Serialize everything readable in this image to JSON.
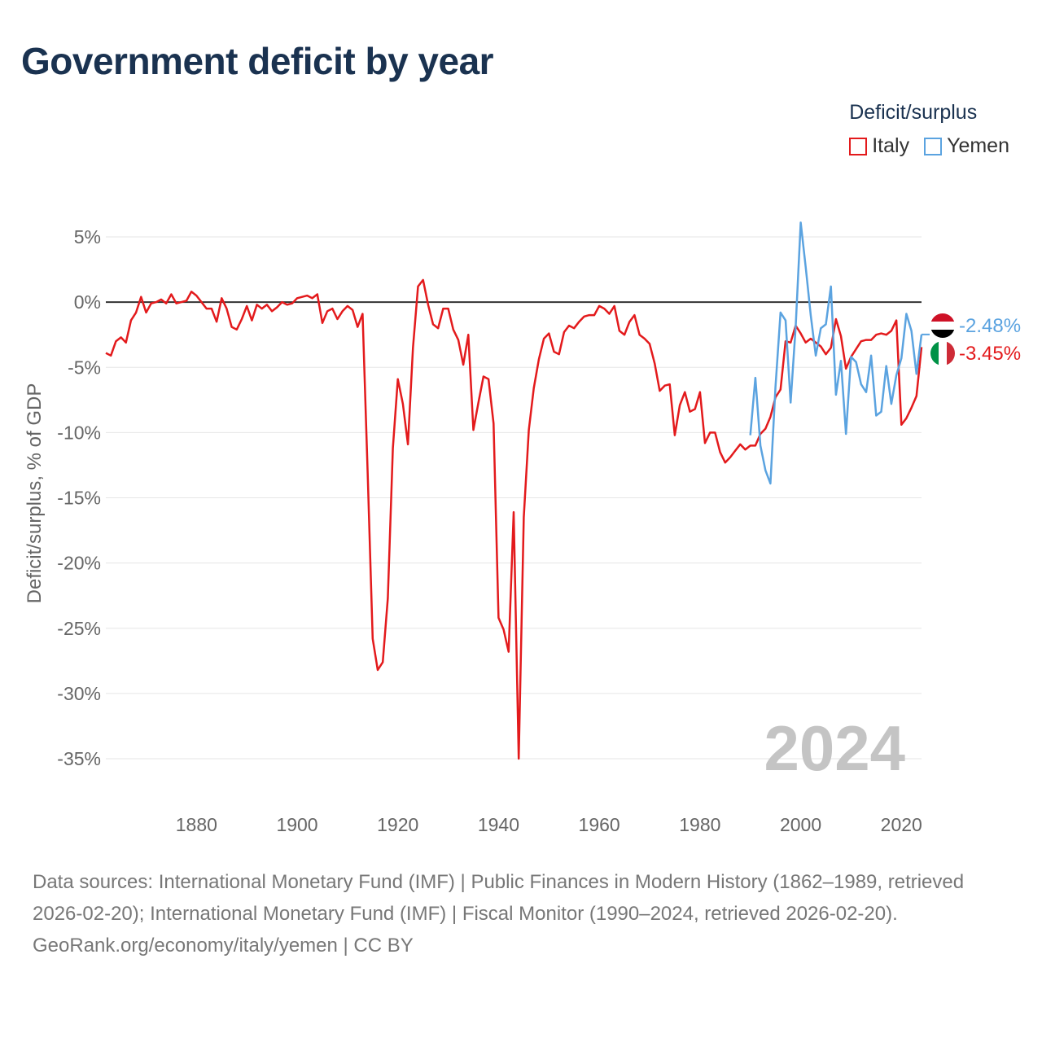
{
  "title": "Government deficit by year",
  "legend": {
    "title": "Deficit/surplus",
    "items": [
      {
        "label": "Italy",
        "color": "#e31a1c"
      },
      {
        "label": "Yemen",
        "color": "#5ba3e0"
      }
    ]
  },
  "year_watermark": "2024",
  "end_labels": {
    "yemen": {
      "text": "-2.48%",
      "color": "#5ba3e0",
      "flag": "yemen-flag-icon"
    },
    "italy": {
      "text": "-3.45%",
      "color": "#e31a1c",
      "flag": "italy-flag-icon"
    }
  },
  "footer": {
    "sources": "Data sources: International Monetary Fund (IMF) | Public Finances in Modern History (1862–1989, retrieved 2026-02-20); International Monetary Fund (IMF) | Fiscal Monitor (1990–2024, retrieved 2026-02-20).",
    "credit": "GeoRank.org/economy/italy/yemen | CC BY"
  },
  "chart_data": {
    "type": "line",
    "title": "Government deficit by year",
    "xlabel": "",
    "ylabel": "Deficit/surplus, % of GDP",
    "xlim": [
      1862,
      2024
    ],
    "ylim": [
      -35,
      5
    ],
    "xticks": [
      1880,
      1900,
      1920,
      1940,
      1960,
      1980,
      2000,
      2020
    ],
    "xtick_labels": [
      "1880",
      "1900",
      "1920",
      "1940",
      "1960",
      "1980",
      "2000",
      "2020"
    ],
    "yticks": [
      5,
      0,
      -5,
      -10,
      -15,
      -20,
      -25,
      -30,
      -35
    ],
    "ytick_labels": [
      "5%",
      "0%",
      "-5%",
      "-10%",
      "-15%",
      "-20%",
      "-25%",
      "-30%",
      "-35%"
    ],
    "series": [
      {
        "name": "Italy",
        "color": "#e31a1c",
        "x": [
          1862,
          1863,
          1864,
          1865,
          1866,
          1867,
          1868,
          1869,
          1870,
          1871,
          1872,
          1873,
          1874,
          1875,
          1876,
          1877,
          1878,
          1879,
          1880,
          1881,
          1882,
          1883,
          1884,
          1885,
          1886,
          1887,
          1888,
          1889,
          1890,
          1891,
          1892,
          1893,
          1894,
          1895,
          1896,
          1897,
          1898,
          1899,
          1900,
          1901,
          1902,
          1903,
          1904,
          1905,
          1906,
          1907,
          1908,
          1909,
          1910,
          1911,
          1912,
          1913,
          1914,
          1915,
          1916,
          1917,
          1918,
          1919,
          1920,
          1921,
          1922,
          1923,
          1924,
          1925,
          1926,
          1927,
          1928,
          1929,
          1930,
          1931,
          1932,
          1933,
          1934,
          1935,
          1936,
          1937,
          1938,
          1939,
          1940,
          1941,
          1942,
          1943,
          1944,
          1945,
          1946,
          1947,
          1948,
          1949,
          1950,
          1951,
          1952,
          1953,
          1954,
          1955,
          1956,
          1957,
          1958,
          1959,
          1960,
          1961,
          1962,
          1963,
          1964,
          1965,
          1966,
          1967,
          1968,
          1969,
          1970,
          1971,
          1972,
          1973,
          1974,
          1975,
          1976,
          1977,
          1978,
          1979,
          1980,
          1981,
          1982,
          1983,
          1984,
          1985,
          1986,
          1987,
          1988,
          1989,
          1990,
          1991,
          1992,
          1993,
          1994,
          1995,
          1996,
          1997,
          1998,
          1999,
          2000,
          2001,
          2002,
          2003,
          2004,
          2005,
          2006,
          2007,
          2008,
          2009,
          2010,
          2011,
          2012,
          2013,
          2014,
          2015,
          2016,
          2017,
          2018,
          2019,
          2020,
          2021,
          2022,
          2023,
          2024
        ],
        "values": [
          -3.9,
          -4.1,
          -3.0,
          -2.7,
          -3.1,
          -1.4,
          -0.8,
          0.4,
          -0.8,
          -0.1,
          0.0,
          0.2,
          -0.1,
          0.6,
          -0.1,
          0.0,
          0.1,
          0.8,
          0.5,
          0.0,
          -0.5,
          -0.5,
          -1.5,
          0.3,
          -0.5,
          -1.9,
          -2.1,
          -1.3,
          -0.3,
          -1.4,
          -0.2,
          -0.5,
          -0.2,
          -0.7,
          -0.4,
          0.0,
          -0.2,
          -0.1,
          0.3,
          0.4,
          0.5,
          0.3,
          0.6,
          -1.6,
          -0.7,
          -0.5,
          -1.3,
          -0.7,
          -0.3,
          -0.6,
          -1.9,
          -0.9,
          -13.0,
          -25.8,
          -28.2,
          -27.6,
          -22.7,
          -11.2,
          -5.9,
          -7.8,
          -10.9,
          -3.5,
          1.2,
          1.7,
          -0.2,
          -1.7,
          -2.0,
          -0.5,
          -0.5,
          -2.1,
          -2.9,
          -4.8,
          -2.5,
          -9.8,
          -7.7,
          -5.7,
          -5.9,
          -9.3,
          -24.2,
          -25.1,
          -26.8,
          -16.1,
          -35.0,
          -16.5,
          -9.8,
          -6.6,
          -4.4,
          -2.8,
          -2.4,
          -3.8,
          -4.0,
          -2.3,
          -1.8,
          -2.0,
          -1.5,
          -1.1,
          -1.0,
          -1.0,
          -0.3,
          -0.5,
          -0.9,
          -0.3,
          -2.2,
          -2.5,
          -1.5,
          -1.0,
          -2.5,
          -2.8,
          -3.2,
          -4.7,
          -6.8,
          -6.4,
          -6.3,
          -10.2,
          -7.9,
          -6.9,
          -8.4,
          -8.2,
          -6.9,
          -10.8,
          -10.0,
          -10.0,
          -11.5,
          -12.3,
          -11.9,
          -11.4,
          -10.9,
          -11.3,
          -11.0,
          -11.0,
          -10.1,
          -9.7,
          -8.8,
          -7.3,
          -6.7,
          -3.0,
          -3.1,
          -1.8,
          -2.4,
          -3.1,
          -2.8,
          -3.1,
          -3.4,
          -4.0,
          -3.5,
          -1.3,
          -2.6,
          -5.1,
          -4.2,
          -3.6,
          -3.0,
          -2.9,
          -2.9,
          -2.5,
          -2.4,
          -2.5,
          -2.2,
          -1.4,
          -9.4,
          -8.9,
          -8.1,
          -7.2,
          -3.45
        ]
      },
      {
        "name": "Yemen",
        "color": "#5ba3e0",
        "x": [
          1990,
          1991,
          1992,
          1993,
          1994,
          1995,
          1996,
          1997,
          1998,
          1999,
          2000,
          2001,
          2002,
          2003,
          2004,
          2005,
          2006,
          2007,
          2008,
          2009,
          2010,
          2011,
          2012,
          2013,
          2014,
          2015,
          2016,
          2017,
          2018,
          2019,
          2020,
          2021,
          2022,
          2023,
          2024
        ],
        "values": [
          -10.2,
          -5.8,
          -11.0,
          -12.9,
          -13.9,
          -6.5,
          -0.8,
          -1.4,
          -7.7,
          -1.9,
          6.1,
          2.7,
          -1.0,
          -4.1,
          -2.0,
          -1.7,
          1.2,
          -7.1,
          -4.5,
          -10.1,
          -4.2,
          -4.6,
          -6.3,
          -6.9,
          -4.1,
          -8.7,
          -8.4,
          -4.9,
          -7.8,
          -5.6,
          -4.3,
          -0.9,
          -2.2,
          -5.5,
          -2.48
        ]
      }
    ]
  }
}
